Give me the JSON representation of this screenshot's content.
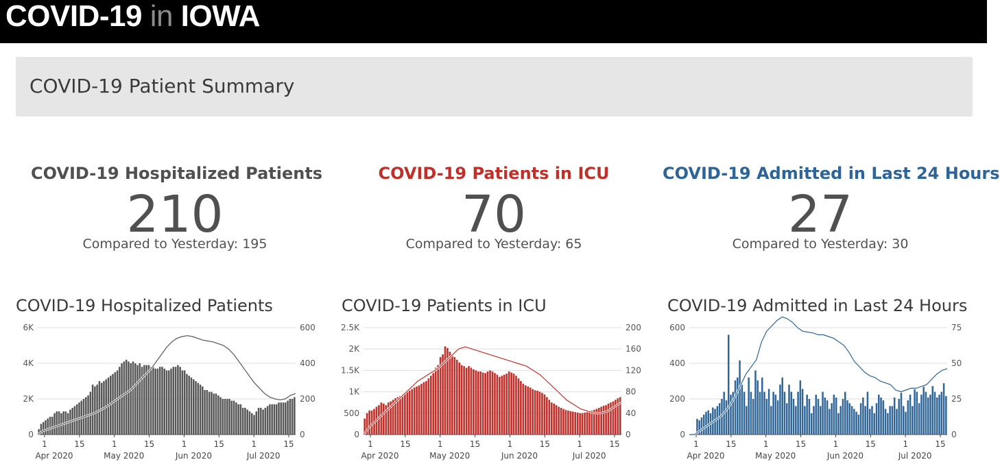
{
  "header": {
    "brand_left": "COVID-19",
    "brand_in": "in",
    "brand_right": "IOWA"
  },
  "summary": {
    "title": "COVID-19 Patient Summary"
  },
  "kpis": [
    {
      "title": "COVID-19 Hospitalized Patients",
      "value": "210",
      "compare": "Compared to Yesterday: 195",
      "color": "#505050"
    },
    {
      "title": "COVID-19 Patients in ICU",
      "value": "70",
      "compare": "Compared to Yesterday: 65",
      "color": "#c0302b"
    },
    {
      "title": "COVID-19 Admitted in Last 24 Hours",
      "value": "27",
      "compare": "Compared to Yesterday: 30",
      "color": "#2e6496"
    }
  ],
  "chart_data": [
    {
      "type": "bar",
      "title": "COVID-19 Hospitalized Patients",
      "bar_color": "#555555",
      "line_color": "#555555",
      "y_left": {
        "range": [
          0,
          6000
        ],
        "ticks": [
          "0",
          "2K",
          "4K",
          "6K"
        ]
      },
      "y_right": {
        "range": [
          0,
          600
        ],
        "ticks": [
          "0",
          "200",
          "400",
          "600"
        ]
      },
      "x_day_ticks": [
        "1",
        "15",
        "1",
        "15",
        "1",
        "15",
        "1",
        "15"
      ],
      "x_month_labels": [
        "Apr 2020",
        "May 2020",
        "Jun 2020",
        "Jul 2020"
      ],
      "bar_values": [
        30,
        60,
        70,
        80,
        90,
        100,
        100,
        120,
        130,
        130,
        120,
        130,
        130,
        120,
        140,
        150,
        160,
        170,
        180,
        190,
        200,
        210,
        220,
        240,
        280,
        270,
        280,
        300,
        290,
        300,
        310,
        320,
        330,
        340,
        350,
        360,
        380,
        400,
        410,
        420,
        410,
        400,
        410,
        400,
        390,
        400,
        380,
        390,
        390,
        390,
        380,
        380,
        370,
        370,
        380,
        380,
        370,
        360,
        360,
        370,
        380,
        380,
        390,
        380,
        360,
        360,
        340,
        330,
        320,
        310,
        300,
        290,
        280,
        270,
        250,
        250,
        240,
        240,
        230,
        230,
        220,
        210,
        200,
        200,
        200,
        200,
        190,
        190,
        180,
        170,
        170,
        150,
        150,
        140,
        130,
        120,
        110,
        130,
        150,
        150,
        140,
        150,
        160,
        170,
        170,
        170,
        170,
        180,
        180,
        180,
        180,
        190,
        200,
        200,
        210
      ],
      "line_values": [
        0,
        200,
        300,
        400,
        500,
        600,
        700,
        800,
        900,
        1000,
        1100,
        1200,
        1350,
        1500,
        1700,
        1900,
        2100,
        2300,
        2500,
        2800,
        3100,
        3400,
        3700,
        4100,
        4500,
        4900,
        5200,
        5400,
        5500,
        5550,
        5500,
        5400,
        5300,
        5250,
        5200,
        5100,
        5000,
        4800,
        4500,
        4100,
        3700,
        3300,
        2900,
        2600,
        2300,
        2100,
        2000,
        1950,
        2000,
        2200,
        2300
      ],
      "bar_axis": "right",
      "line_axis": "left"
    },
    {
      "type": "bar",
      "title": "COVID-19 Patients in ICU",
      "bar_color": "#c0302b",
      "line_color": "#c0302b",
      "y_left": {
        "range": [
          0,
          2500
        ],
        "ticks": [
          "0",
          "500",
          "1K",
          "1.5K",
          "2K",
          "2.5K"
        ]
      },
      "y_right": {
        "range": [
          0,
          200
        ],
        "ticks": [
          "0",
          "40",
          "80",
          "120",
          "160",
          "200"
        ]
      },
      "x_day_ticks": [
        "1",
        "15",
        "1",
        "15",
        "1",
        "15",
        "1",
        "15"
      ],
      "x_month_labels": [
        "Apr 2020",
        "May 2020",
        "Jun 2020",
        "Jul 2020"
      ],
      "bar_values": [
        30,
        40,
        45,
        45,
        48,
        52,
        55,
        60,
        58,
        55,
        60,
        62,
        65,
        68,
        70,
        72,
        75,
        78,
        80,
        82,
        85,
        88,
        90,
        92,
        95,
        98,
        100,
        105,
        110,
        115,
        125,
        130,
        145,
        150,
        165,
        162,
        155,
        150,
        145,
        140,
        135,
        130,
        128,
        125,
        128,
        125,
        122,
        120,
        118,
        118,
        116,
        115,
        118,
        120,
        118,
        115,
        112,
        108,
        110,
        112,
        114,
        118,
        116,
        114,
        110,
        105,
        100,
        95,
        92,
        90,
        88,
        85,
        83,
        82,
        80,
        78,
        75,
        70,
        65,
        60,
        58,
        55,
        52,
        50,
        48,
        46,
        45,
        44,
        43,
        42,
        41,
        40,
        40,
        41,
        42,
        44,
        45,
        46,
        48,
        50,
        52,
        54,
        55,
        58,
        60,
        62,
        65,
        68,
        70
      ],
      "line_values": [
        0,
        200,
        350,
        500,
        650,
        800,
        950,
        1100,
        1250,
        1350,
        1450,
        1550,
        1700,
        1850,
        2000,
        2050,
        2000,
        1950,
        1900,
        1850,
        1800,
        1750,
        1700,
        1650,
        1600,
        1500,
        1400,
        1250,
        1100,
        950,
        800,
        700,
        600,
        550,
        500,
        500,
        550,
        650,
        750
      ],
      "bar_axis": "right",
      "line_axis": "left"
    },
    {
      "type": "bar",
      "title": "COVID-19 Admitted in Last 24 Hours",
      "bar_color": "#2e6496",
      "line_color": "#2e6496",
      "y_left": {
        "range": [
          0,
          600
        ],
        "ticks": [
          "0",
          "200",
          "400",
          "600"
        ]
      },
      "y_right": {
        "range": [
          0,
          75
        ],
        "ticks": [
          "0",
          "25",
          "50",
          "75"
        ]
      },
      "x_day_ticks": [
        "1",
        "15",
        "1",
        "15",
        "1",
        "15",
        "1",
        "15"
      ],
      "x_month_labels": [
        "Apr 2020",
        "May 2020",
        "Jun 2020",
        "Jul 2020"
      ],
      "bar_values": [
        0,
        0,
        0,
        11,
        10,
        12,
        14,
        16,
        17,
        15,
        19,
        18,
        20,
        22,
        25,
        30,
        24,
        70,
        28,
        30,
        38,
        40,
        52,
        35,
        30,
        20,
        40,
        30,
        25,
        45,
        38,
        30,
        40,
        30,
        25,
        32,
        20,
        30,
        28,
        24,
        35,
        40,
        30,
        22,
        35,
        30,
        25,
        20,
        30,
        38,
        32,
        20,
        28,
        25,
        15,
        20,
        28,
        25,
        20,
        30,
        26,
        24,
        18,
        22,
        28,
        26,
        15,
        20,
        25,
        30,
        24,
        22,
        20,
        18,
        16,
        14,
        22,
        26,
        20,
        30,
        18,
        20,
        15,
        22,
        28,
        26,
        24,
        18,
        15,
        20,
        20,
        26,
        18,
        25,
        30,
        20,
        16,
        24,
        28,
        20,
        32,
        30,
        22,
        28,
        35,
        30,
        26,
        28,
        34,
        30,
        26,
        28,
        30,
        36,
        27
      ],
      "line_values": [
        0,
        0,
        20,
        40,
        60,
        80,
        100,
        130,
        170,
        220,
        280,
        340,
        380,
        420,
        520,
        580,
        610,
        640,
        660,
        650,
        630,
        600,
        580,
        575,
        570,
        560,
        560,
        550,
        540,
        520,
        500,
        460,
        410,
        380,
        350,
        330,
        320,
        300,
        290,
        280,
        250,
        240,
        250,
        260,
        260,
        270,
        280,
        310,
        340,
        360,
        370
      ],
      "bar_axis": "right",
      "line_axis": "left"
    }
  ]
}
